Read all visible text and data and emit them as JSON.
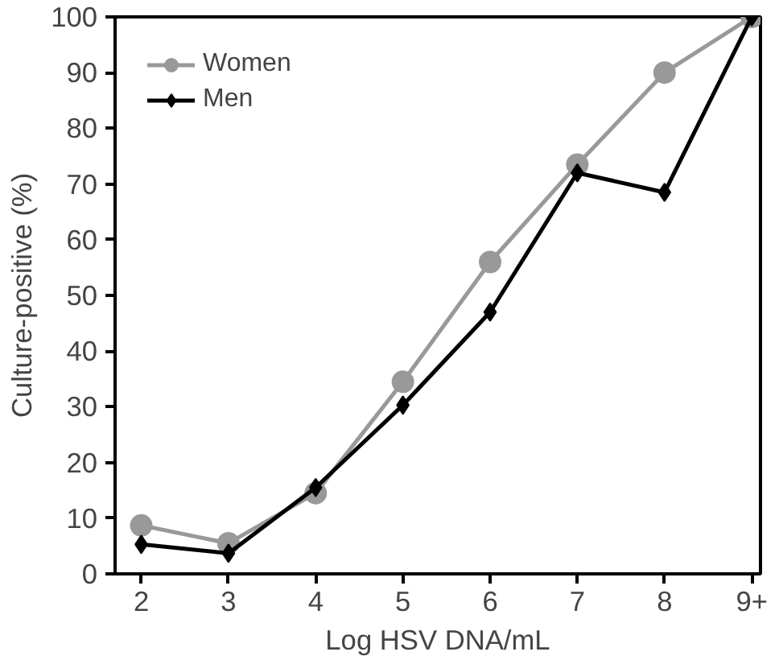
{
  "chart_data": {
    "type": "line",
    "xlabel": "Log HSV DNA/mL",
    "ylabel": "Culture-positive (%)",
    "categories": [
      "2",
      "3",
      "4",
      "5",
      "6",
      "7",
      "8",
      "9+"
    ],
    "series": [
      {
        "name": "Women",
        "color": "#999999",
        "marker": "circle",
        "values": [
          8.7,
          5.5,
          14.5,
          34.5,
          56,
          73.5,
          90,
          100
        ]
      },
      {
        "name": "Men",
        "color": "#000000",
        "marker": "diamond",
        "values": [
          5.3,
          3.7,
          15.5,
          30.3,
          47,
          72,
          68.5,
          100
        ]
      }
    ],
    "ylim": [
      0,
      100
    ],
    "yticks": [
      0,
      10,
      20,
      30,
      40,
      50,
      60,
      70,
      80,
      90,
      100
    ],
    "grid": false,
    "legend": "top left",
    "line_style": "solid"
  }
}
